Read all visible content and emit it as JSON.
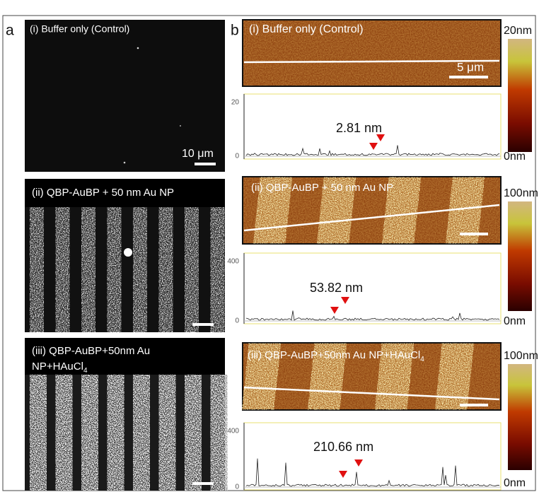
{
  "panel_a": {
    "label": "a",
    "images": [
      {
        "title_lines": [
          "(i) Buffer only (Control)"
        ],
        "scale_bar": "10 μm"
      },
      {
        "title_lines": [
          "(ii) QBP-AuBP + 50 nm  Au NP"
        ]
      },
      {
        "title_lines": [
          "(iii) QBP-AuBP+50nm  Au",
          "NP+HAuCl"
        ],
        "title_sub": "4"
      }
    ]
  },
  "panel_b": {
    "label": "b",
    "images": [
      {
        "title": "(i) Buffer only (Control)",
        "scale_bar": "5 μm",
        "colorbar_max": "20nm",
        "colorbar_min": "0nm",
        "profile_yticks": [
          20,
          0
        ],
        "height": "2.81 nm"
      },
      {
        "title": "(ii) QBP-AuBP + 50 nm Au NP",
        "colorbar_max": "100nm",
        "colorbar_min": "0nm",
        "profile_yticks": [
          400,
          0
        ],
        "height": "53.82 nm"
      },
      {
        "title": "(iii) QBP-AuBP+50nm Au NP+HAuCl",
        "title_sub": "4",
        "colorbar_max": "100nm",
        "colorbar_min": "0nm",
        "profile_yticks": [
          400,
          0
        ],
        "height": "210.66 nm"
      }
    ]
  }
}
